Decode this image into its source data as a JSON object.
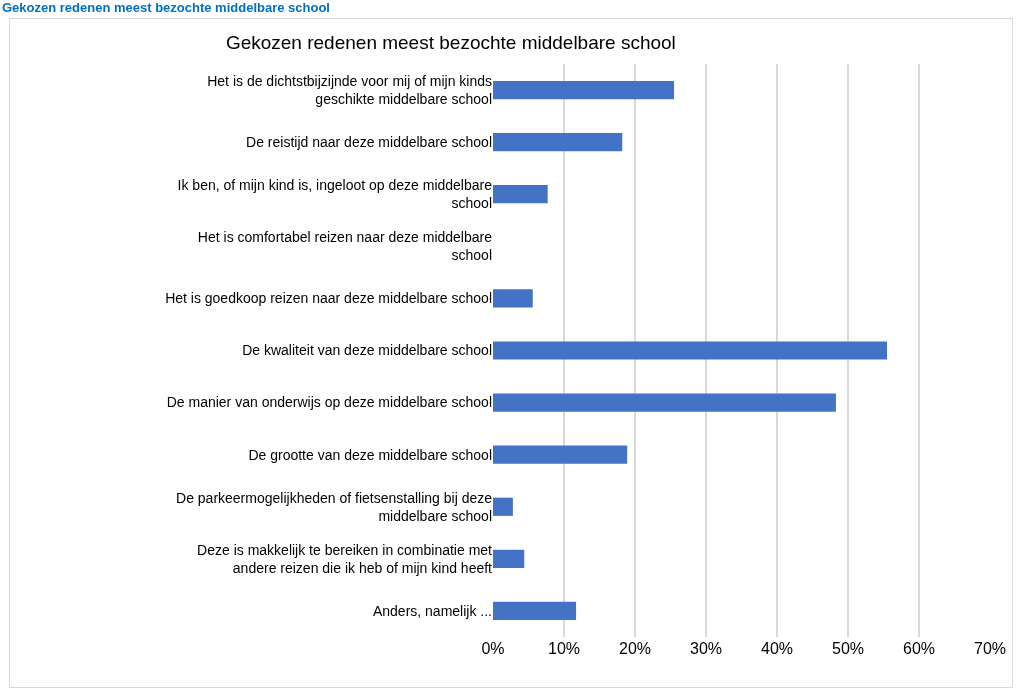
{
  "chart_data": {
    "type": "bar",
    "orientation": "horizontal",
    "title": "Gekozen redenen meest bezochte middelbare school",
    "annotations": [
      "Gekozen redenen meest bezochte middelbare school"
    ],
    "categories": [
      "Het is de dichtstbijzijnde voor mij of mijn kinds geschikte middelbare school",
      "De reistijd naar deze middelbare school",
      "Ik ben, of mijn kind is, ingeloot op deze middelbare school",
      "Het is comfortabel reizen naar deze middelbare school",
      "Het is goedkoop reizen naar deze middelbare school",
      "De kwaliteit van deze middelbare school",
      "De manier van onderwijs op deze middelbare school",
      "De grootte van deze middelbare school",
      "De parkeermogelijkheden of fietsenstalling bij deze middelbare school",
      "Deze is makkelijk te bereiken in combinatie met andere reizen die ik heb of mijn kind heeft",
      "Anders, namelijk ..."
    ],
    "values": [
      25.5,
      18.2,
      7.7,
      0,
      5.6,
      55.5,
      48.3,
      18.9,
      2.8,
      4.4,
      11.7
    ],
    "color": "#4472c4",
    "xlim": [
      0,
      70
    ],
    "xticks": [
      {
        "value": 0,
        "label": "0%"
      },
      {
        "value": 10,
        "label": "10%"
      },
      {
        "value": 20,
        "label": "20%"
      },
      {
        "value": 30,
        "label": "30%"
      },
      {
        "value": 40,
        "label": "40%"
      },
      {
        "value": 50,
        "label": "50%"
      },
      {
        "value": 60,
        "label": "60%"
      },
      {
        "value": 70,
        "label": "70%"
      }
    ],
    "grid": "x"
  }
}
